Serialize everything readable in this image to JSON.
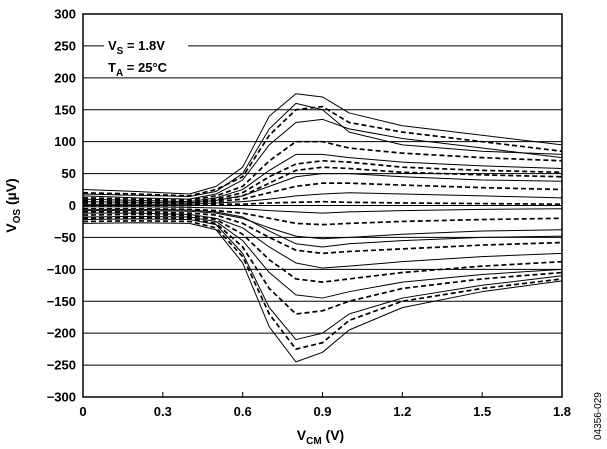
{
  "chart_data": {
    "type": "line",
    "xlabel": {
      "main": "V",
      "sub": "CM",
      "unit": " (V)"
    },
    "ylabel": {
      "main": "V",
      "sub": "OS",
      "unit": " (µV)"
    },
    "xlim": [
      0,
      1.8
    ],
    "ylim": [
      -300,
      300
    ],
    "xticks": [
      0,
      0.3,
      0.6,
      0.9,
      1.2,
      1.5,
      1.8
    ],
    "xtick_labels": [
      "0",
      "0.3",
      "0.6",
      "0.9",
      "1.2",
      "1.5",
      "1.8"
    ],
    "yticks": [
      300,
      250,
      200,
      150,
      100,
      50,
      0,
      -50,
      -100,
      -150,
      -200,
      -250,
      -300
    ],
    "ytick_labels": [
      "300",
      "250",
      "200",
      "150",
      "100",
      "50",
      "0",
      "−50",
      "−100",
      "−150",
      "−200",
      "−250",
      "−300"
    ],
    "grid": "horizontal",
    "annotations": [
      {
        "main": "V",
        "sub": "S",
        "rest": " = 1.8V"
      },
      {
        "main": "T",
        "sub": "A",
        "rest": " = 25°C"
      }
    ],
    "figure_id": "04356-029",
    "x": [
      0,
      0.2,
      0.4,
      0.5,
      0.6,
      0.7,
      0.8,
      0.9,
      1.0,
      1.2,
      1.5,
      1.8
    ],
    "series": [
      {
        "style": "solid",
        "values": [
          25,
          22,
          18,
          30,
          60,
          140,
          175,
          170,
          145,
          125,
          110,
          95
        ]
      },
      {
        "style": "dashed",
        "values": [
          20,
          18,
          15,
          25,
          45,
          110,
          150,
          155,
          130,
          115,
          100,
          85
        ]
      },
      {
        "style": "solid",
        "values": [
          15,
          12,
          10,
          18,
          40,
          95,
          130,
          135,
          120,
          105,
          90,
          75
        ]
      },
      {
        "style": "dashed",
        "values": [
          12,
          10,
          8,
          15,
          30,
          70,
          100,
          100,
          90,
          82,
          75,
          70
        ]
      },
      {
        "style": "solid",
        "values": [
          10,
          8,
          6,
          12,
          25,
          55,
          80,
          80,
          75,
          68,
          62,
          58
        ]
      },
      {
        "style": "dashed",
        "values": [
          8,
          6,
          5,
          10,
          20,
          45,
          65,
          70,
          68,
          60,
          55,
          52
        ]
      },
      {
        "style": "solid",
        "values": [
          6,
          5,
          4,
          8,
          15,
          30,
          45,
          50,
          50,
          45,
          40,
          38
        ]
      },
      {
        "style": "dashed",
        "values": [
          4,
          3,
          3,
          6,
          10,
          20,
          30,
          35,
          35,
          32,
          28,
          25
        ]
      },
      {
        "style": "solid",
        "values": [
          2,
          2,
          2,
          4,
          6,
          10,
          15,
          18,
          20,
          18,
          15,
          12
        ]
      },
      {
        "style": "dashed",
        "values": [
          0,
          0,
          0,
          2,
          2,
          4,
          5,
          6,
          5,
          4,
          3,
          2
        ]
      },
      {
        "style": "solid",
        "values": [
          -2,
          -2,
          -3,
          -4,
          -5,
          -8,
          -10,
          -12,
          -10,
          -8,
          -6,
          -5
        ]
      },
      {
        "style": "dashed",
        "values": [
          -5,
          -5,
          -6,
          -8,
          -12,
          -20,
          -28,
          -30,
          -28,
          -25,
          -22,
          -20
        ]
      },
      {
        "style": "solid",
        "values": [
          -8,
          -8,
          -9,
          -12,
          -20,
          -35,
          -48,
          -52,
          -50,
          -45,
          -40,
          -38
        ]
      },
      {
        "style": "dashed",
        "values": [
          -10,
          -10,
          -12,
          -15,
          -28,
          -50,
          -70,
          -75,
          -72,
          -68,
          -62,
          -58
        ]
      },
      {
        "style": "solid",
        "values": [
          -12,
          -12,
          -14,
          -20,
          -35,
          -65,
          -90,
          -98,
          -95,
          -88,
          -80,
          -75
        ]
      },
      {
        "style": "dashed",
        "values": [
          -15,
          -14,
          -16,
          -22,
          -45,
          -85,
          -115,
          -120,
          -115,
          -105,
          -95,
          -88
        ]
      },
      {
        "style": "solid",
        "values": [
          -18,
          -17,
          -18,
          -25,
          -55,
          -105,
          -140,
          -145,
          -135,
          -120,
          -108,
          -100
        ]
      },
      {
        "style": "dashed",
        "values": [
          -20,
          -19,
          -20,
          -28,
          -65,
          -130,
          -170,
          -165,
          -150,
          -130,
          -115,
          -105
        ]
      },
      {
        "style": "solid",
        "values": [
          -22,
          -21,
          -22,
          -30,
          -75,
          -160,
          -210,
          -200,
          -170,
          -145,
          -125,
          -110
        ]
      },
      {
        "style": "dashed",
        "values": [
          -25,
          -24,
          -25,
          -35,
          -80,
          -170,
          -225,
          -215,
          -180,
          -150,
          -130,
          -115
        ]
      },
      {
        "style": "solid",
        "values": [
          -28,
          -27,
          -28,
          -38,
          -90,
          -190,
          -245,
          -230,
          -195,
          -160,
          -135,
          -118
        ]
      },
      {
        "style": "solid",
        "values": [
          18,
          16,
          14,
          22,
          50,
          120,
          160,
          150,
          115,
          95,
          85,
          80
        ]
      },
      {
        "style": "dashed",
        "values": [
          5,
          4,
          3,
          8,
          15,
          35,
          55,
          60,
          58,
          52,
          48,
          45
        ]
      },
      {
        "style": "solid",
        "values": [
          -6,
          -6,
          -7,
          -10,
          -18,
          -40,
          -60,
          -65,
          -60,
          -55,
          -50,
          -48
        ]
      }
    ]
  }
}
